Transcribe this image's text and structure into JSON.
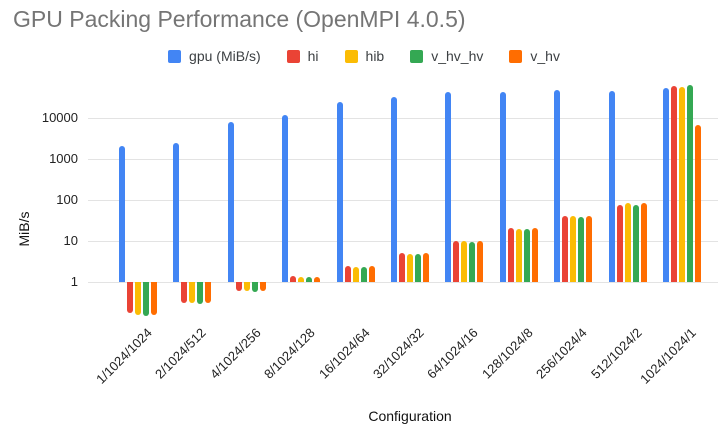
{
  "chart_data": {
    "type": "bar",
    "title": "GPU Packing Performance (OpenMPI 4.0.5)",
    "xlabel": "Configuration",
    "ylabel": "MiB/s",
    "y_scale": "log",
    "y_ticks": [
      1,
      10,
      100,
      1000,
      10000
    ],
    "ylim": [
      0.13,
      63000
    ],
    "grid": true,
    "legend_position": "top",
    "categories": [
      "1/1024/1024",
      "2/1024/512",
      "4/1024/256",
      "8/1024/128",
      "16/1024/64",
      "32/1024/32",
      "64/1024/16",
      "128/1024/8",
      "256/1024/4",
      "512/1024/2",
      "1024/1024/1"
    ],
    "series": [
      {
        "name": "gpu (MiB/s)",
        "color": "#4285F4",
        "values": [
          2100,
          2400,
          8000,
          12000,
          24000,
          33000,
          42000,
          44000,
          48000,
          46000,
          54000
        ]
      },
      {
        "name": "hi",
        "color": "#EA4335",
        "values": [
          0.18,
          0.31,
          0.62,
          1.4,
          2.4,
          5.0,
          9.8,
          21,
          40,
          76,
          61000
        ]
      },
      {
        "name": "hib",
        "color": "#FBBC04",
        "values": [
          0.16,
          0.3,
          0.6,
          1.35,
          2.35,
          4.9,
          10,
          20,
          40,
          85,
          57000
        ]
      },
      {
        "name": "v_hv_hv",
        "color": "#34A853",
        "values": [
          0.15,
          0.29,
          0.58,
          1.3,
          2.3,
          4.9,
          9.7,
          20,
          39,
          77,
          63000
        ]
      },
      {
        "name": "v_hv",
        "color": "#FF6D01",
        "values": [
          0.16,
          0.31,
          0.6,
          1.35,
          2.4,
          5.0,
          10,
          21,
          41,
          84,
          6700
        ]
      }
    ]
  }
}
